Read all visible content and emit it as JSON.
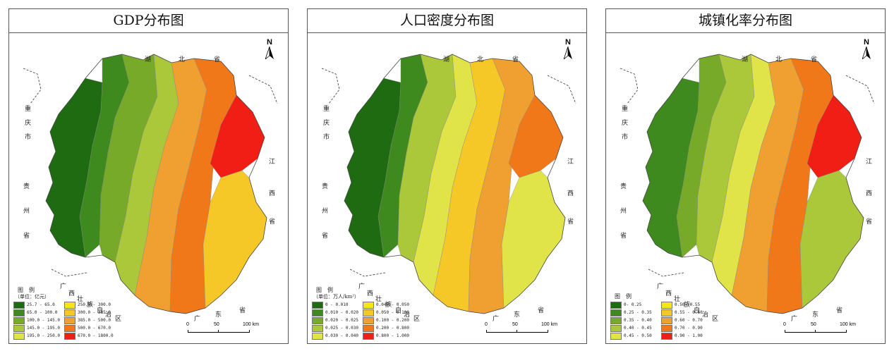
{
  "panels": [
    {
      "title": "GDP分布图",
      "legend_title": "图　例",
      "legend_unit": "（单位：亿元）",
      "legend": [
        {
          "label": "25.7 - 65.0",
          "color": "#1e6b12"
        },
        {
          "label": "250.0 - 300.0",
          "color": "#f5e61a"
        },
        {
          "label": "65.0 - 100.0",
          "color": "#3f8a1e"
        },
        {
          "label": "300.0 - 385.0",
          "color": "#f5c828"
        },
        {
          "label": "100.0 - 145.0",
          "color": "#78aa2a"
        },
        {
          "label": "385.0 - 500.0",
          "color": "#f0a030"
        },
        {
          "label": "145.0 - 195.0",
          "color": "#aac83a"
        },
        {
          "label": "500.0 - 670.0",
          "color": "#f07818"
        },
        {
          "label": "195.0 - 250.0",
          "color": "#e0e448"
        },
        {
          "label": "670.0 - 1800.0",
          "color": "#f01e14"
        }
      ],
      "zones": [
        "#1e6b12",
        "#3f8a1e",
        "#78aa2a",
        "#aac83a",
        "#f0a030",
        "#f07818",
        "#f01e14",
        "#f5c828"
      ]
    },
    {
      "title": "人口密度分布图",
      "legend_title": "图　例",
      "legend_unit": "（单位：万人/km²）",
      "legend": [
        {
          "label": "0 - 0.010",
          "color": "#1e6b12"
        },
        {
          "label": "0.040 - 0.050",
          "color": "#f5e61a"
        },
        {
          "label": "0.010 - 0.020",
          "color": "#3f8a1e"
        },
        {
          "label": "0.050 - 0.100",
          "color": "#f5c828"
        },
        {
          "label": "0.020 - 0.025",
          "color": "#78aa2a"
        },
        {
          "label": "0.100 - 0.200",
          "color": "#f0a030"
        },
        {
          "label": "0.025 - 0.030",
          "color": "#aac83a"
        },
        {
          "label": "0.200 - 0.800",
          "color": "#f07818"
        },
        {
          "label": "0.030 - 0.040",
          "color": "#e0e448"
        },
        {
          "label": "0.800 - 1.000",
          "color": "#f01e14"
        }
      ],
      "zones": [
        "#1e6b12",
        "#3f8a1e",
        "#aac83a",
        "#e0e448",
        "#f5c828",
        "#f0a030",
        "#f07818",
        "#e0e448"
      ]
    },
    {
      "title": "城镇化率分布图",
      "legend_title": "图　例",
      "legend_unit": "",
      "legend": [
        {
          "label": "0- 0.25",
          "color": "#1e6b12"
        },
        {
          "label": "0.50- 0.55",
          "color": "#f5e61a"
        },
        {
          "label": "0.25 - 0.35",
          "color": "#3f8a1e"
        },
        {
          "label": "0.55 - 0.60",
          "color": "#f5c828"
        },
        {
          "label": "0.35 - 0.40",
          "color": "#78aa2a"
        },
        {
          "label": "0.60 - 0.70",
          "color": "#f0a030"
        },
        {
          "label": "0.40 - 0.45",
          "color": "#aac83a"
        },
        {
          "label": "0.70 - 0.90",
          "color": "#f07818"
        },
        {
          "label": "0.45 - 0.50",
          "color": "#e0e448"
        },
        {
          "label": "0.90 - 1.00",
          "color": "#f01e14"
        }
      ],
      "zones": [
        "#3f8a1e",
        "#78aa2a",
        "#aac83a",
        "#e0e448",
        "#f0a030",
        "#f07818",
        "#f01e14",
        "#aac83a"
      ]
    }
  ],
  "map_labels": {
    "north": "N",
    "hubei": [
      "湖",
      "北",
      "省"
    ],
    "chongqing": [
      "重",
      "庆",
      "市"
    ],
    "guizhou": [
      "贵",
      "州",
      "省"
    ],
    "jiangxi": [
      "江",
      "西",
      "省"
    ],
    "guangxi": [
      "广",
      "西",
      "壮",
      "族",
      "自",
      "治",
      "区"
    ],
    "guangdong": [
      "广",
      "东",
      "省"
    ]
  },
  "scale": {
    "ticks": [
      "0",
      "50",
      "100 km"
    ]
  }
}
